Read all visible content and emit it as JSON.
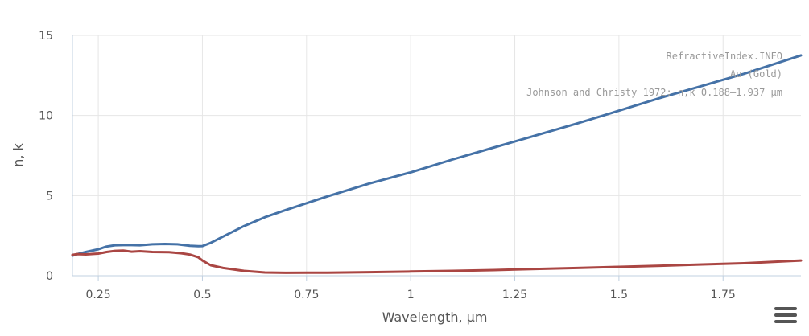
{
  "chart_data": {
    "type": "line",
    "xlabel": "Wavelength, µm",
    "ylabel": "n, k",
    "xlim": [
      0.188,
      1.937
    ],
    "ylim": [
      0,
      15
    ],
    "x_ticks": [
      {
        "value": 0.25,
        "label": "0.25"
      },
      {
        "value": 0.5,
        "label": "0.5"
      },
      {
        "value": 0.75,
        "label": "0.75"
      },
      {
        "value": 1,
        "label": "1"
      },
      {
        "value": 1.25,
        "label": "1.25"
      },
      {
        "value": 1.5,
        "label": "1.5"
      },
      {
        "value": 1.75,
        "label": "1.75"
      }
    ],
    "y_ticks": [
      {
        "value": 0,
        "label": "0"
      },
      {
        "value": 5,
        "label": "5"
      },
      {
        "value": 10,
        "label": "10"
      },
      {
        "value": 15,
        "label": "15"
      }
    ],
    "grid": true,
    "credits": [
      "RefractiveIndex.INFO",
      "Au (Gold)",
      "Johnson and Christy 1972: n,k 0.188–1.937 µm"
    ],
    "series": [
      {
        "color": "#4572A7",
        "x": [
          0.188,
          0.2,
          0.22,
          0.25,
          0.27,
          0.29,
          0.32,
          0.35,
          0.38,
          0.41,
          0.44,
          0.47,
          0.49,
          0.5,
          0.52,
          0.55,
          0.6,
          0.65,
          0.7,
          0.8,
          0.9,
          1.0,
          1.1,
          1.2,
          1.3,
          1.4,
          1.5,
          1.6,
          1.7,
          1.8,
          1.937
        ],
        "y": [
          1.25,
          1.35,
          1.48,
          1.65,
          1.82,
          1.9,
          1.92,
          1.9,
          1.96,
          1.98,
          1.96,
          1.87,
          1.84,
          1.85,
          2.05,
          2.45,
          3.1,
          3.65,
          4.1,
          4.95,
          5.75,
          6.45,
          7.25,
          8.0,
          8.75,
          9.5,
          10.3,
          11.1,
          11.85,
          12.6,
          13.75
        ]
      },
      {
        "color": "#AA4643",
        "x": [
          0.188,
          0.2,
          0.22,
          0.25,
          0.27,
          0.29,
          0.31,
          0.33,
          0.35,
          0.38,
          0.42,
          0.45,
          0.47,
          0.49,
          0.5,
          0.52,
          0.55,
          0.6,
          0.65,
          0.7,
          0.8,
          0.9,
          1.0,
          1.1,
          1.2,
          1.3,
          1.4,
          1.5,
          1.6,
          1.7,
          1.8,
          1.937
        ],
        "y": [
          1.3,
          1.35,
          1.33,
          1.38,
          1.48,
          1.55,
          1.57,
          1.5,
          1.53,
          1.48,
          1.47,
          1.4,
          1.32,
          1.15,
          0.95,
          0.65,
          0.48,
          0.3,
          0.2,
          0.18,
          0.19,
          0.22,
          0.26,
          0.3,
          0.35,
          0.42,
          0.48,
          0.55,
          0.62,
          0.7,
          0.78,
          0.95
        ]
      }
    ]
  }
}
